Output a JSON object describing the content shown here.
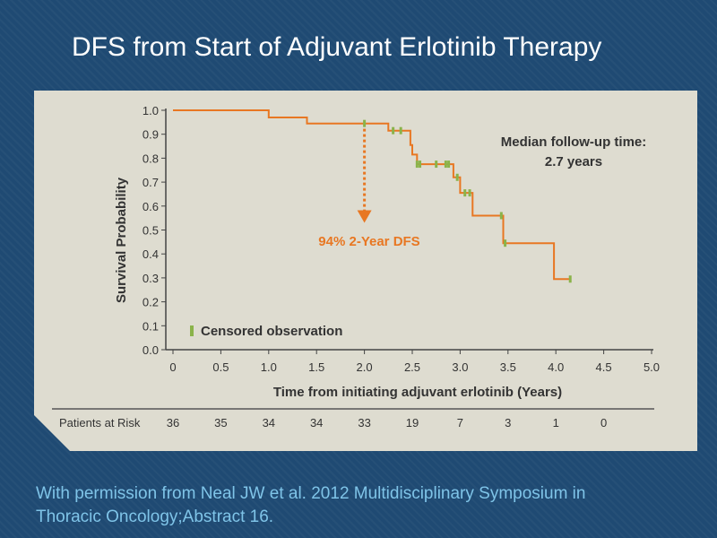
{
  "slide": {
    "title": "DFS from Start of Adjuvant Erlotinib Therapy",
    "citation_line1": "With permission from Neal JW et al. 2012 Multidisciplinary Symposium in",
    "citation_line2": "Thoracic Oncology;Abstract 16."
  },
  "chart_data": {
    "type": "line",
    "xlabel": "Time from initiating adjuvant erlotinib (Years)",
    "ylabel": "Survival  Probability",
    "xlim": [
      0,
      5
    ],
    "ylim": [
      0,
      1
    ],
    "x_ticks": [
      "0",
      "0.5",
      "1.0",
      "1.5",
      "2.0",
      "2.5",
      "3.0",
      "3.5",
      "4.0",
      "4.5",
      "5.0"
    ],
    "y_ticks": [
      "0.0",
      "0.1",
      "0.2",
      "0.3",
      "0.4",
      "0.5",
      "0.6",
      "0.7",
      "0.8",
      "0.9",
      "1.0"
    ],
    "grid": false,
    "series": [
      {
        "step_points": [
          [
            0,
            1.0
          ],
          [
            1.0,
            1.0
          ],
          [
            1.0,
            0.97
          ],
          [
            1.4,
            0.97
          ],
          [
            1.4,
            0.945
          ],
          [
            2.25,
            0.945
          ],
          [
            2.25,
            0.915
          ],
          [
            2.48,
            0.915
          ],
          [
            2.48,
            0.855
          ],
          [
            2.5,
            0.855
          ],
          [
            2.5,
            0.815
          ],
          [
            2.55,
            0.815
          ],
          [
            2.55,
            0.775
          ],
          [
            2.93,
            0.775
          ],
          [
            2.93,
            0.72
          ],
          [
            3.0,
            0.72
          ],
          [
            3.0,
            0.655
          ],
          [
            3.13,
            0.655
          ],
          [
            3.13,
            0.56
          ],
          [
            3.45,
            0.56
          ],
          [
            3.45,
            0.445
          ],
          [
            3.98,
            0.445
          ],
          [
            3.98,
            0.295
          ],
          [
            4.15,
            0.295
          ]
        ],
        "color": "#e87722"
      }
    ],
    "censored": [
      [
        2.0,
        0.945
      ],
      [
        2.3,
        0.915
      ],
      [
        2.38,
        0.915
      ],
      [
        2.55,
        0.775
      ],
      [
        2.58,
        0.775
      ],
      [
        2.75,
        0.775
      ],
      [
        2.85,
        0.775
      ],
      [
        2.88,
        0.775
      ],
      [
        2.97,
        0.72
      ],
      [
        3.05,
        0.655
      ],
      [
        3.1,
        0.655
      ],
      [
        3.43,
        0.56
      ],
      [
        3.47,
        0.445
      ],
      [
        4.15,
        0.295
      ]
    ],
    "censor_color": "#8ab34a",
    "arrow": {
      "x": 2.0,
      "from": 0.945,
      "to": 0.53
    },
    "annotations": {
      "dfs": "94% 2-Year DFS",
      "median_line1": "Median follow-up time:",
      "median_line2": "2.7 years",
      "legend_censored": "Censored observation"
    },
    "risk_table": {
      "label": "Patients at Risk",
      "values": [
        "36",
        "35",
        "34",
        "34",
        "33",
        "19",
        "7",
        "3",
        "1",
        "0"
      ]
    }
  }
}
